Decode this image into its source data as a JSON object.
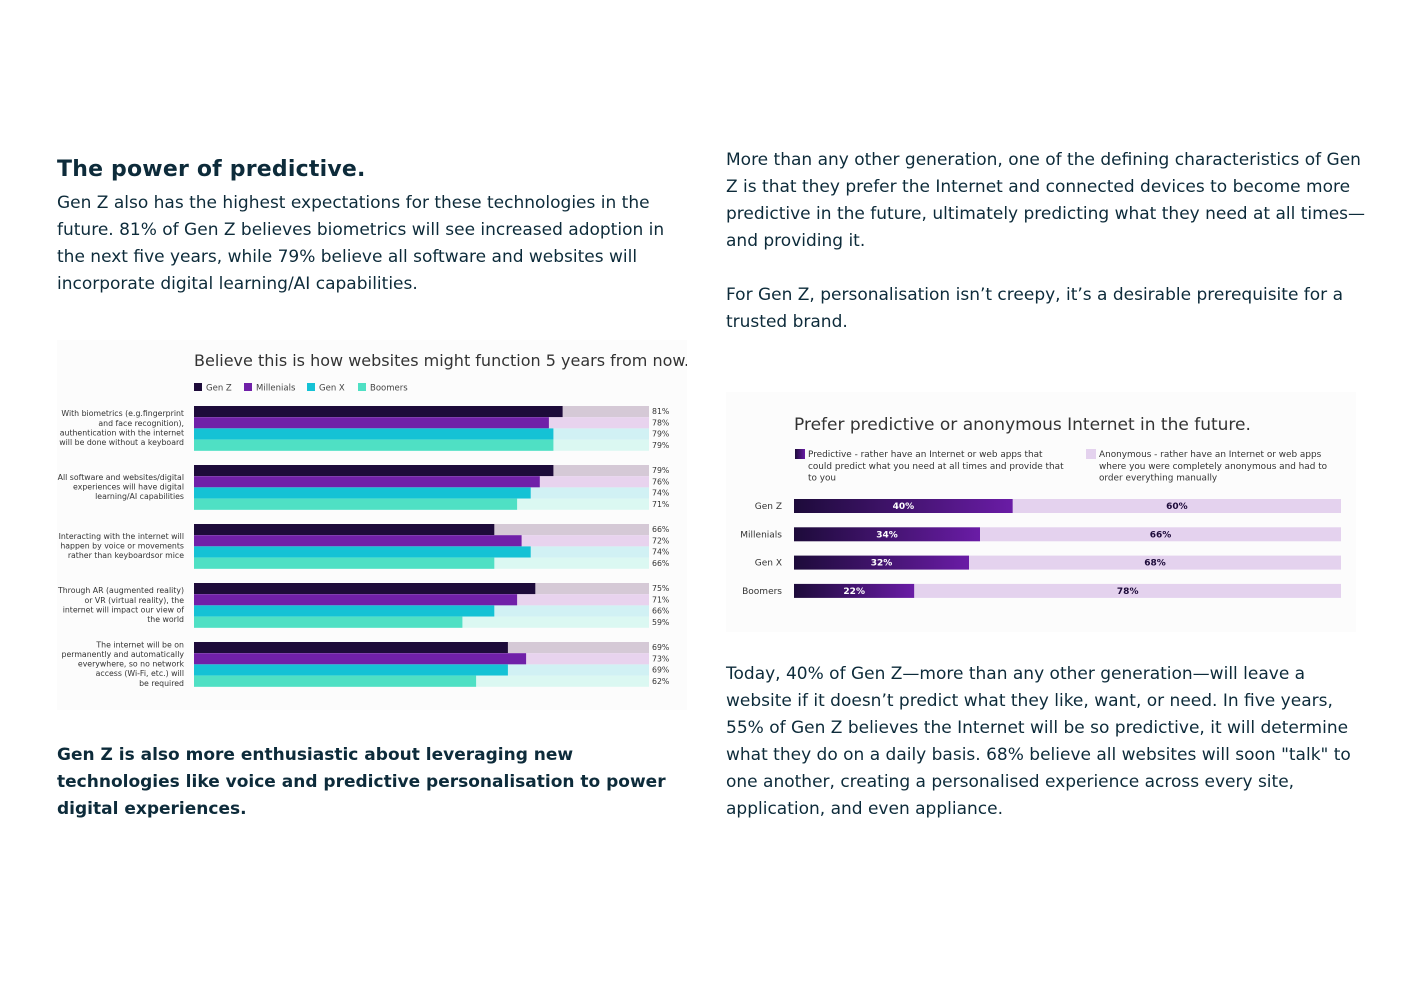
{
  "left": {
    "heading": "The power of predictive.",
    "intro": "Gen Z also has the highest expectations for these technologies in the future. 81% of Gen Z believes biometrics will see increased adoption in the next five years, while 79% believe all software and websites will incorporate digital learning/AI capabilities.",
    "closing": "Gen Z is also more enthusiastic about leveraging new technologies like voice and predictive personalisation to power digital experiences."
  },
  "right": {
    "para1": "More than any other generation, one of the defining characteristics of Gen Z is that they prefer the Internet and connected devices to become more predictive in the future, ultimately predicting what they need at all times—and providing it.",
    "para2": "For Gen Z, personalisation isn’t creepy, it’s a desirable prerequisite for a trusted brand.",
    "para3": "Today, 40% of Gen Z—more than any other generation—will leave a website if it doesn’t predict what they like, want, or need. In five years, 55% of Gen Z believes the Internet will be so predictive, it will determine what they do on a daily basis. 68% believe all websites will soon \"talk\" to one another, creating a personalised experience across every site, application, and even appliance."
  },
  "chart_data": [
    {
      "type": "bar",
      "orientation": "horizontal",
      "title": "Believe this is how websites might function 5 years from now.",
      "xlim": [
        0,
        100
      ],
      "legend_position": "top-left",
      "categories": [
        [
          "With biometrics (e.g.fingerprint",
          "and face recognition),",
          "authentication with the internet",
          "will be done without a keyboard"
        ],
        [
          "All software and websites/digital",
          "experiences will have digital",
          "learning/AI capabilities"
        ],
        [
          "Interacting with the internet will",
          "happen by voice or movements",
          "rather than keyboardsor mice"
        ],
        [
          "Through AR (augmented reality)",
          "or VR (virtual reality), the",
          "internet will impact our view of",
          "the world"
        ],
        [
          "The internet will be on",
          "permanently and automatically",
          "everywhere, so no network",
          "access (Wi-Fi, etc.) will",
          "be required"
        ]
      ],
      "series": [
        {
          "name": "Gen Z",
          "color": "#1d0b3a",
          "track": "#d5c9d6",
          "values": [
            81,
            79,
            66,
            75,
            69
          ]
        },
        {
          "name": "Millenials",
          "color": "#7020a8",
          "track": "#e8d3ee",
          "values": [
            78,
            76,
            72,
            71,
            73
          ]
        },
        {
          "name": "Gen X",
          "color": "#15c2d5",
          "track": "#d1f1f4",
          "values": [
            79,
            74,
            74,
            66,
            69
          ]
        },
        {
          "name": "Boomers",
          "color": "#4fe0c4",
          "track": "#dbf8f2",
          "values": [
            79,
            71,
            66,
            59,
            62
          ]
        }
      ]
    },
    {
      "type": "bar",
      "orientation": "horizontal",
      "stacked": true,
      "title": "Prefer predictive or anonymous Internet in the future.",
      "xlim": [
        0,
        100
      ],
      "legend_position": "top",
      "categories": [
        "Gen Z",
        "Millenials",
        "Gen X",
        "Boomers"
      ],
      "series": [
        {
          "name": "Predictive - rather have an Internet or web apps that could predict what you need at all times and provide that to you",
          "legend_lines": [
            "Predictive - rather have an Internet or web apps that",
            "could predict what you need at all times and provide that",
            "to you"
          ],
          "color": "#6a1ca6",
          "values": [
            40,
            34,
            32,
            22
          ]
        },
        {
          "name": "Anonymous - rather have an Internet or web apps where you were completely anonymous and had to order everything manually",
          "legend_lines": [
            "Anonymous - rather have an Internet or web apps",
            "where you were completely anonymous and had to",
            "order everything manually"
          ],
          "color": "#e4d2ee",
          "values": [
            60,
            66,
            68,
            78
          ]
        }
      ],
      "value_suffix": "%"
    }
  ]
}
